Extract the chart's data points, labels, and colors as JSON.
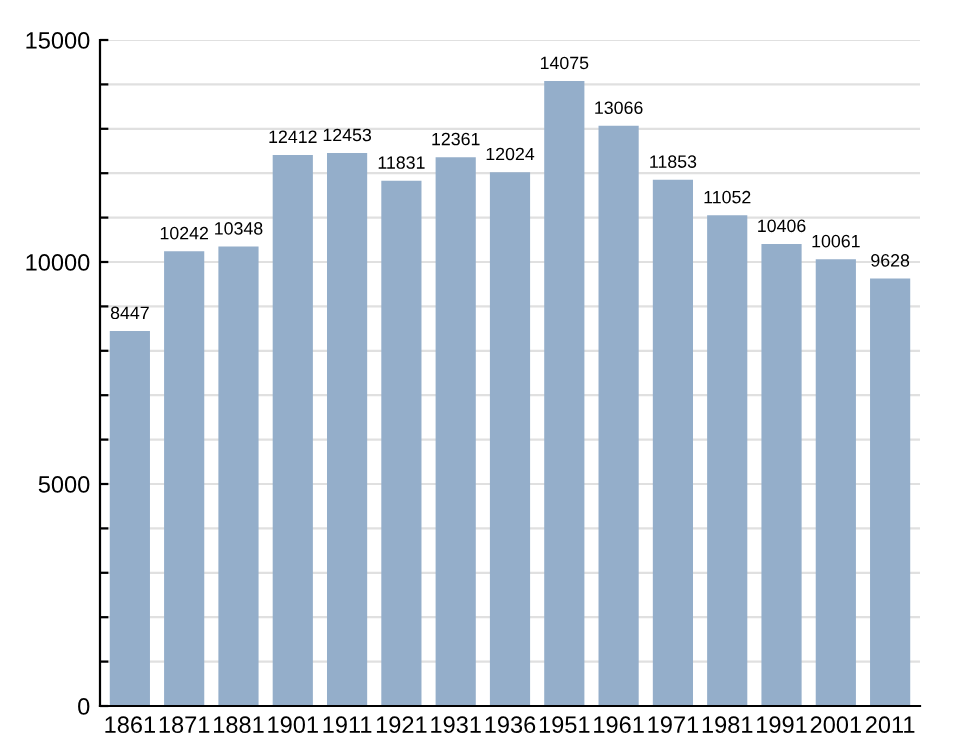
{
  "chart_data": {
    "type": "bar",
    "categories": [
      "1861",
      "1871",
      "1881",
      "1901",
      "1911",
      "1921",
      "1931",
      "1936",
      "1951",
      "1961",
      "1971",
      "1981",
      "1991",
      "2001",
      "2011"
    ],
    "values": [
      8447,
      10242,
      10348,
      12412,
      12453,
      11831,
      12361,
      12024,
      14075,
      13066,
      11853,
      11052,
      10406,
      10061,
      9628
    ],
    "color": "#94aeca",
    "data_labels": true,
    "ylim": [
      0,
      15000
    ],
    "yticks": [
      0,
      {
        "value": 1000,
        "label": null
      },
      {
        "value": 2000,
        "label": null
      },
      {
        "value": 3000,
        "label": null
      },
      {
        "value": 4000,
        "label": null
      },
      5000,
      {
        "value": 6000,
        "label": null
      },
      {
        "value": 7000,
        "label": null
      },
      {
        "value": 8000,
        "label": null
      },
      {
        "value": 9000,
        "label": null
      },
      10000,
      {
        "value": 11000,
        "label": null
      },
      {
        "value": 12000,
        "label": null
      },
      {
        "value": 13000,
        "label": null
      },
      {
        "value": 14000,
        "label": null
      },
      15000
    ],
    "grid": "y"
  }
}
